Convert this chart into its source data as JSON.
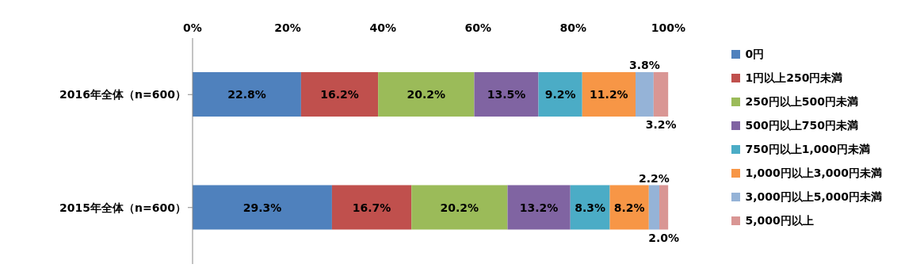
{
  "chart_data": {
    "type": "bar",
    "orientation": "horizontal",
    "stacked": true,
    "categories": [
      "2016年全体（n=600）",
      "2015年全体（n=600）"
    ],
    "series": [
      {
        "name": "0円",
        "color": "#4f81bd",
        "values": [
          22.8,
          29.3
        ],
        "value_labels": [
          "22.8%",
          "29.3%"
        ]
      },
      {
        "name": "1円以上250円未満",
        "color": "#c0504d",
        "values": [
          16.2,
          16.7
        ],
        "value_labels": [
          "16.2%",
          "16.7%"
        ]
      },
      {
        "name": "250円以上500円未満",
        "color": "#9bbb59",
        "values": [
          20.2,
          20.2
        ],
        "value_labels": [
          "20.2%",
          "20.2%"
        ]
      },
      {
        "name": "500円以上750円未満",
        "color": "#8064a2",
        "values": [
          13.5,
          13.2
        ],
        "value_labels": [
          "13.5%",
          "13.2%"
        ]
      },
      {
        "name": "750円以上1,000円未満",
        "color": "#4bacc6",
        "values": [
          9.2,
          8.3
        ],
        "value_labels": [
          "9.2%",
          "8.3%"
        ]
      },
      {
        "name": "1,000円以上3,000円未満",
        "color": "#f79646",
        "values": [
          11.2,
          8.2
        ],
        "value_labels": [
          "11.2%",
          "8.2%"
        ]
      },
      {
        "name": "3,000円以上5,000円未満",
        "color": "#95b3d7",
        "values": [
          3.8,
          2.2
        ],
        "value_labels": [
          "3.8%",
          "2.2%"
        ]
      },
      {
        "name": "5,000円以上",
        "color": "#d99694",
        "values": [
          3.2,
          2.0
        ],
        "value_labels": [
          "3.2%",
          "2.0%"
        ]
      }
    ],
    "xlim": [
      0,
      100
    ],
    "xticks": [
      {
        "value": 0,
        "label": "0%"
      },
      {
        "value": 20,
        "label": "20%"
      },
      {
        "value": 40,
        "label": "40%"
      },
      {
        "value": 60,
        "label": "60%"
      },
      {
        "value": 80,
        "label": "80%"
      },
      {
        "value": 100,
        "label": "100%"
      }
    ],
    "legend": "right",
    "grid": false
  }
}
